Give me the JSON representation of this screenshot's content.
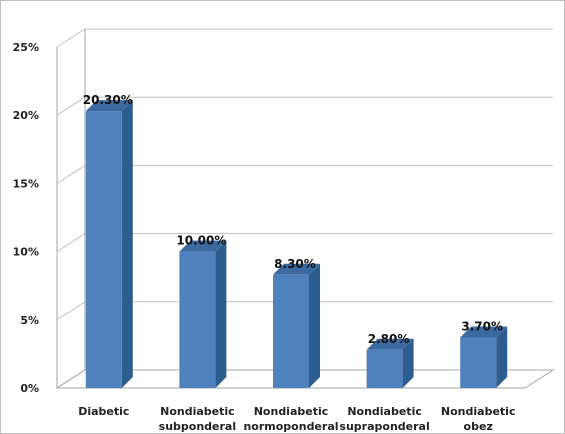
{
  "chart_data": {
    "type": "bar",
    "title": "",
    "xlabel": "",
    "ylabel": "",
    "categories": [
      [
        "Diabetic"
      ],
      [
        "Nondiabetic",
        "subponderal"
      ],
      [
        "Nondiabetic",
        "normoponderal"
      ],
      [
        "Nondiabetic",
        "supraponderal"
      ],
      [
        "Nondiabetic",
        "obez"
      ]
    ],
    "values": [
      20.3,
      10.0,
      8.3,
      2.8,
      3.7
    ],
    "data_labels": [
      "20.30%",
      "10.00%",
      "8.30%",
      "2.80%",
      "3.70%"
    ],
    "yticks": [
      "0%",
      "5%",
      "10%",
      "15%",
      "20%",
      "25%"
    ],
    "ylim": [
      0,
      25
    ],
    "grid": true,
    "legend": "none",
    "colors": {
      "bar_front": "#4f81bd",
      "bar_side": "#2b5d8f",
      "bar_top": "#3a6aa0",
      "gridline": "#c0c0c0",
      "axis": "#a6a6a6"
    }
  }
}
